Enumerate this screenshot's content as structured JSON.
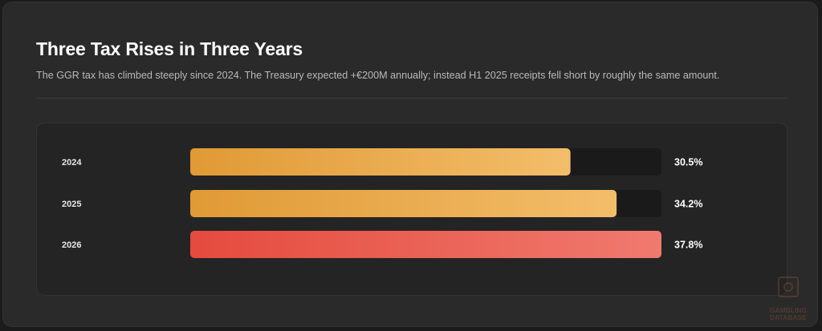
{
  "header": {
    "title": "Three Tax Rises in Three Years",
    "subtitle": "The GGR tax has climbed steeply since 2024. The Treasury expected +€200M annually; instead H1 2025 receipts fell short by roughly the same amount."
  },
  "watermark": {
    "line1": "GAMBLING",
    "line2": "DATABASE"
  },
  "colors": {
    "track": "#1a1a1a",
    "amber_start": "#e09a35",
    "amber_end": "#f3bd6a",
    "red_start": "#e54b3e",
    "red_end": "#f07a6e"
  },
  "chart_data": {
    "type": "bar",
    "orientation": "horizontal",
    "title": "Three Tax Rises in Three Years",
    "categories": [
      "2024",
      "2025",
      "2026"
    ],
    "values": [
      30.5,
      34.2,
      37.8
    ],
    "value_labels": [
      "30.5%",
      "34.2%",
      "37.8%"
    ],
    "bar_colors": [
      "amber",
      "amber",
      "red"
    ],
    "xlim": [
      0,
      37.8
    ],
    "grid": false,
    "legend": "none"
  }
}
